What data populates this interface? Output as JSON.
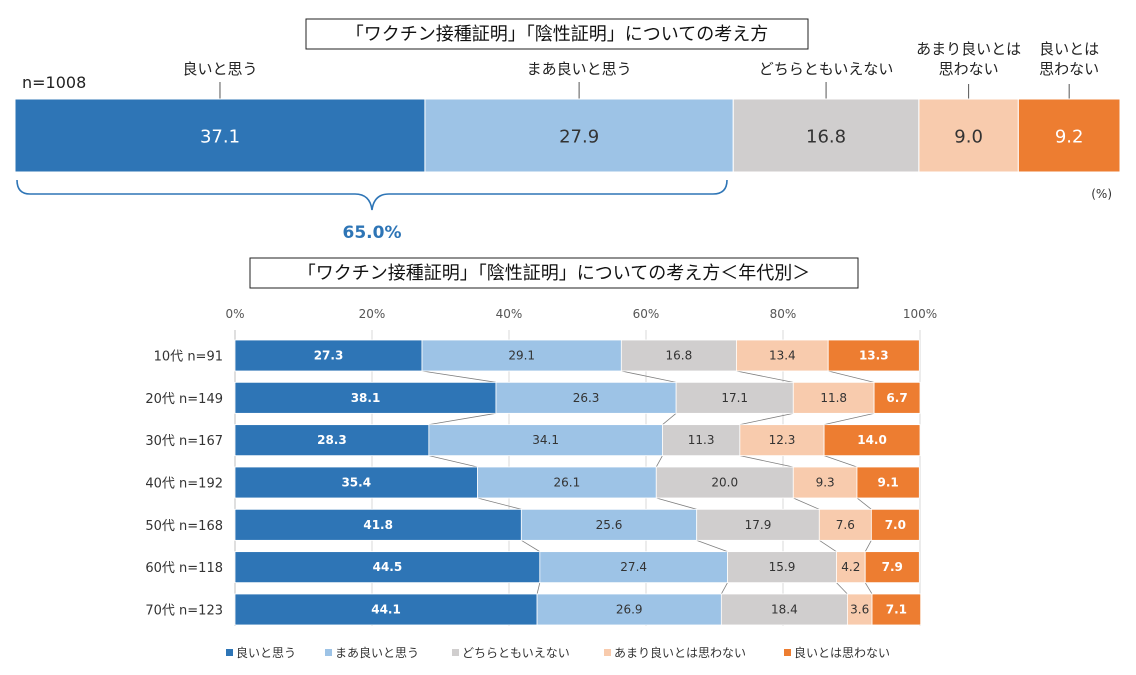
{
  "chart_data": [
    {
      "type": "bar",
      "orientation": "horizontal",
      "stacked": true,
      "title": "「ワクチン接種証明」「陰性証明」についての考え方",
      "sample_label": "n=1008",
      "unit_label": "(%)",
      "series": [
        {
          "name": "良いと思う",
          "values": [
            37.1
          ]
        },
        {
          "name": "まあ良いと思う",
          "values": [
            27.9
          ]
        },
        {
          "name": "どちらともいえない",
          "values": [
            16.8
          ]
        },
        {
          "name": "あまり良いとは思わない",
          "values": [
            9.0
          ]
        },
        {
          "name": "良いとは思わない",
          "values": [
            9.2
          ]
        }
      ],
      "top_labels": [
        "良いと思う",
        "まあ良いと思う",
        "どちらともいえない",
        "あまり良いとは\n思わない",
        "良いとは\n思わない"
      ],
      "value_labels": [
        "37.1",
        "27.9",
        "16.8",
        "9.0",
        "9.2"
      ],
      "bracket_total": "65.0%"
    },
    {
      "type": "bar",
      "orientation": "horizontal",
      "stacked": true,
      "title": "「ワクチン接種証明」「陰性証明」についての考え方＜年代別＞",
      "categories": [
        "10代 n=91",
        "20代 n=149",
        "30代 n=167",
        "40代 n=192",
        "50代 n=168",
        "60代 n=118",
        "70代 n=123"
      ],
      "xlim": [
        0,
        100
      ],
      "xticks": [
        "0%",
        "20%",
        "40%",
        "60%",
        "80%",
        "100%"
      ],
      "series": [
        {
          "name": "良いと思う",
          "values": [
            27.3,
            38.1,
            28.3,
            35.4,
            41.8,
            44.5,
            44.1
          ],
          "labels": [
            "27.3",
            "38.1",
            "28.3",
            "35.4",
            "41.8",
            "44.5",
            "44.1"
          ]
        },
        {
          "name": "まあ良いと思う",
          "values": [
            29.1,
            26.3,
            34.1,
            26.1,
            25.6,
            27.4,
            26.9
          ],
          "labels": [
            "29.1",
            "26.3",
            "34.1",
            "26.1",
            "25.6",
            "27.4",
            "26.9"
          ]
        },
        {
          "name": "どちらともいえない",
          "values": [
            16.8,
            17.1,
            11.3,
            20.0,
            17.9,
            15.9,
            18.4
          ],
          "labels": [
            "16.8",
            "17.1",
            "11.3",
            "20.0",
            "17.9",
            "15.9",
            "18.4"
          ]
        },
        {
          "name": "あまり良いとは思わない",
          "values": [
            13.4,
            11.8,
            12.3,
            9.3,
            7.6,
            4.2,
            3.6
          ],
          "labels": [
            "13.4",
            "11.8",
            "12.3",
            "9.3",
            "7.6",
            "4.2",
            "3.6"
          ]
        },
        {
          "name": "良いとは思わない",
          "values": [
            13.3,
            6.7,
            14.0,
            9.1,
            7.0,
            7.9,
            7.1
          ],
          "labels": [
            "13.3",
            "6.7",
            "14.0",
            "9.1",
            "7.0",
            "7.9",
            "7.1"
          ]
        }
      ],
      "legend_position": "bottom",
      "gridlines": true
    }
  ],
  "colors": [
    "#2e75b6",
    "#9dc3e6",
    "#d0cece",
    "#f8cbad",
    "#ed7d31"
  ],
  "label_colors": [
    "#ffffff",
    "#333333",
    "#333333",
    "#333333",
    "#ffffff"
  ]
}
